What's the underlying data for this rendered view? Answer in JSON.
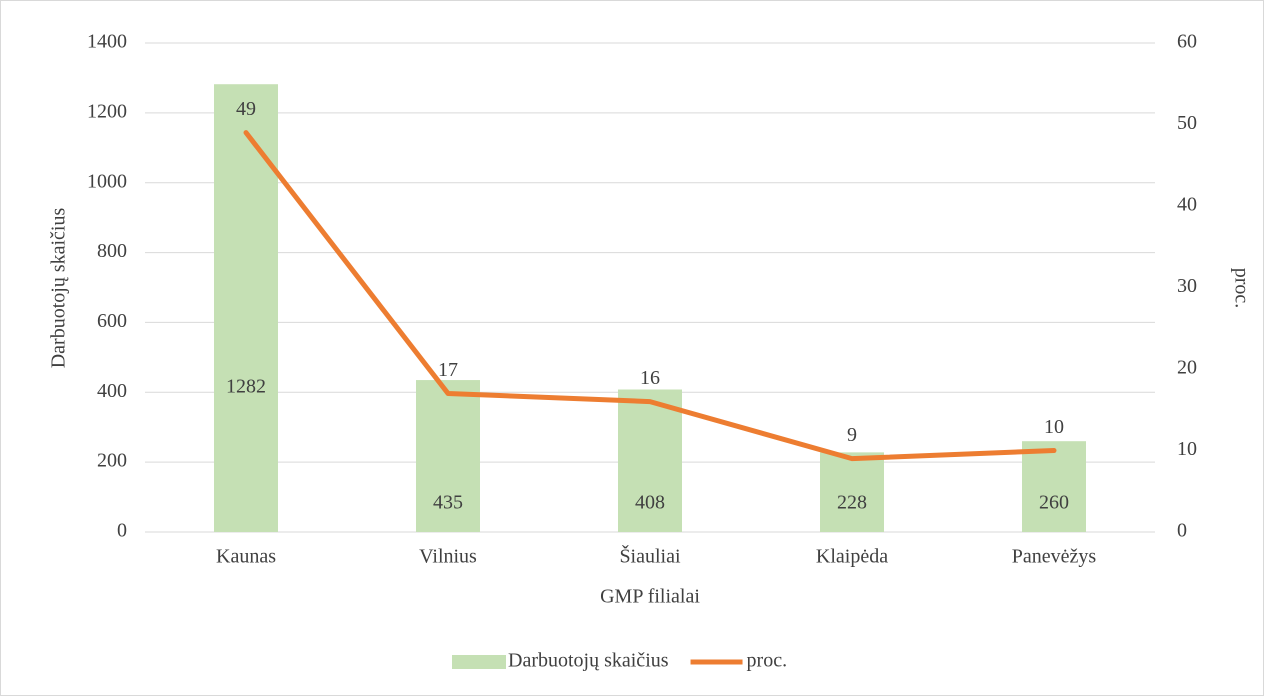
{
  "chart_data": {
    "type": "bar",
    "categories": [
      "Kaunas",
      "Vilnius",
      "Šiauliai",
      "Klaipėda",
      "Panevėžys"
    ],
    "x_label": "GMP filialai",
    "y_label": "Darbuotojų skaičius",
    "y2_label": "proc.",
    "series": [
      {
        "name": "Darbuotojų skaičius",
        "color": "#c5e0b4",
        "values": [
          1282,
          435,
          408,
          228,
          260
        ]
      },
      {
        "name": "proc.",
        "color": "#ed7d31",
        "type": "line",
        "axis": "y2",
        "values": [
          49,
          17,
          16,
          9,
          10
        ]
      }
    ],
    "ylim": [
      0,
      1400
    ],
    "yticks": [
      0,
      200,
      400,
      600,
      800,
      1000,
      1200,
      1400
    ],
    "y2lim": [
      0,
      60
    ],
    "y2ticks": [
      0,
      10,
      20,
      30,
      40,
      50,
      60
    ],
    "grid": true,
    "legend": "bottom"
  }
}
